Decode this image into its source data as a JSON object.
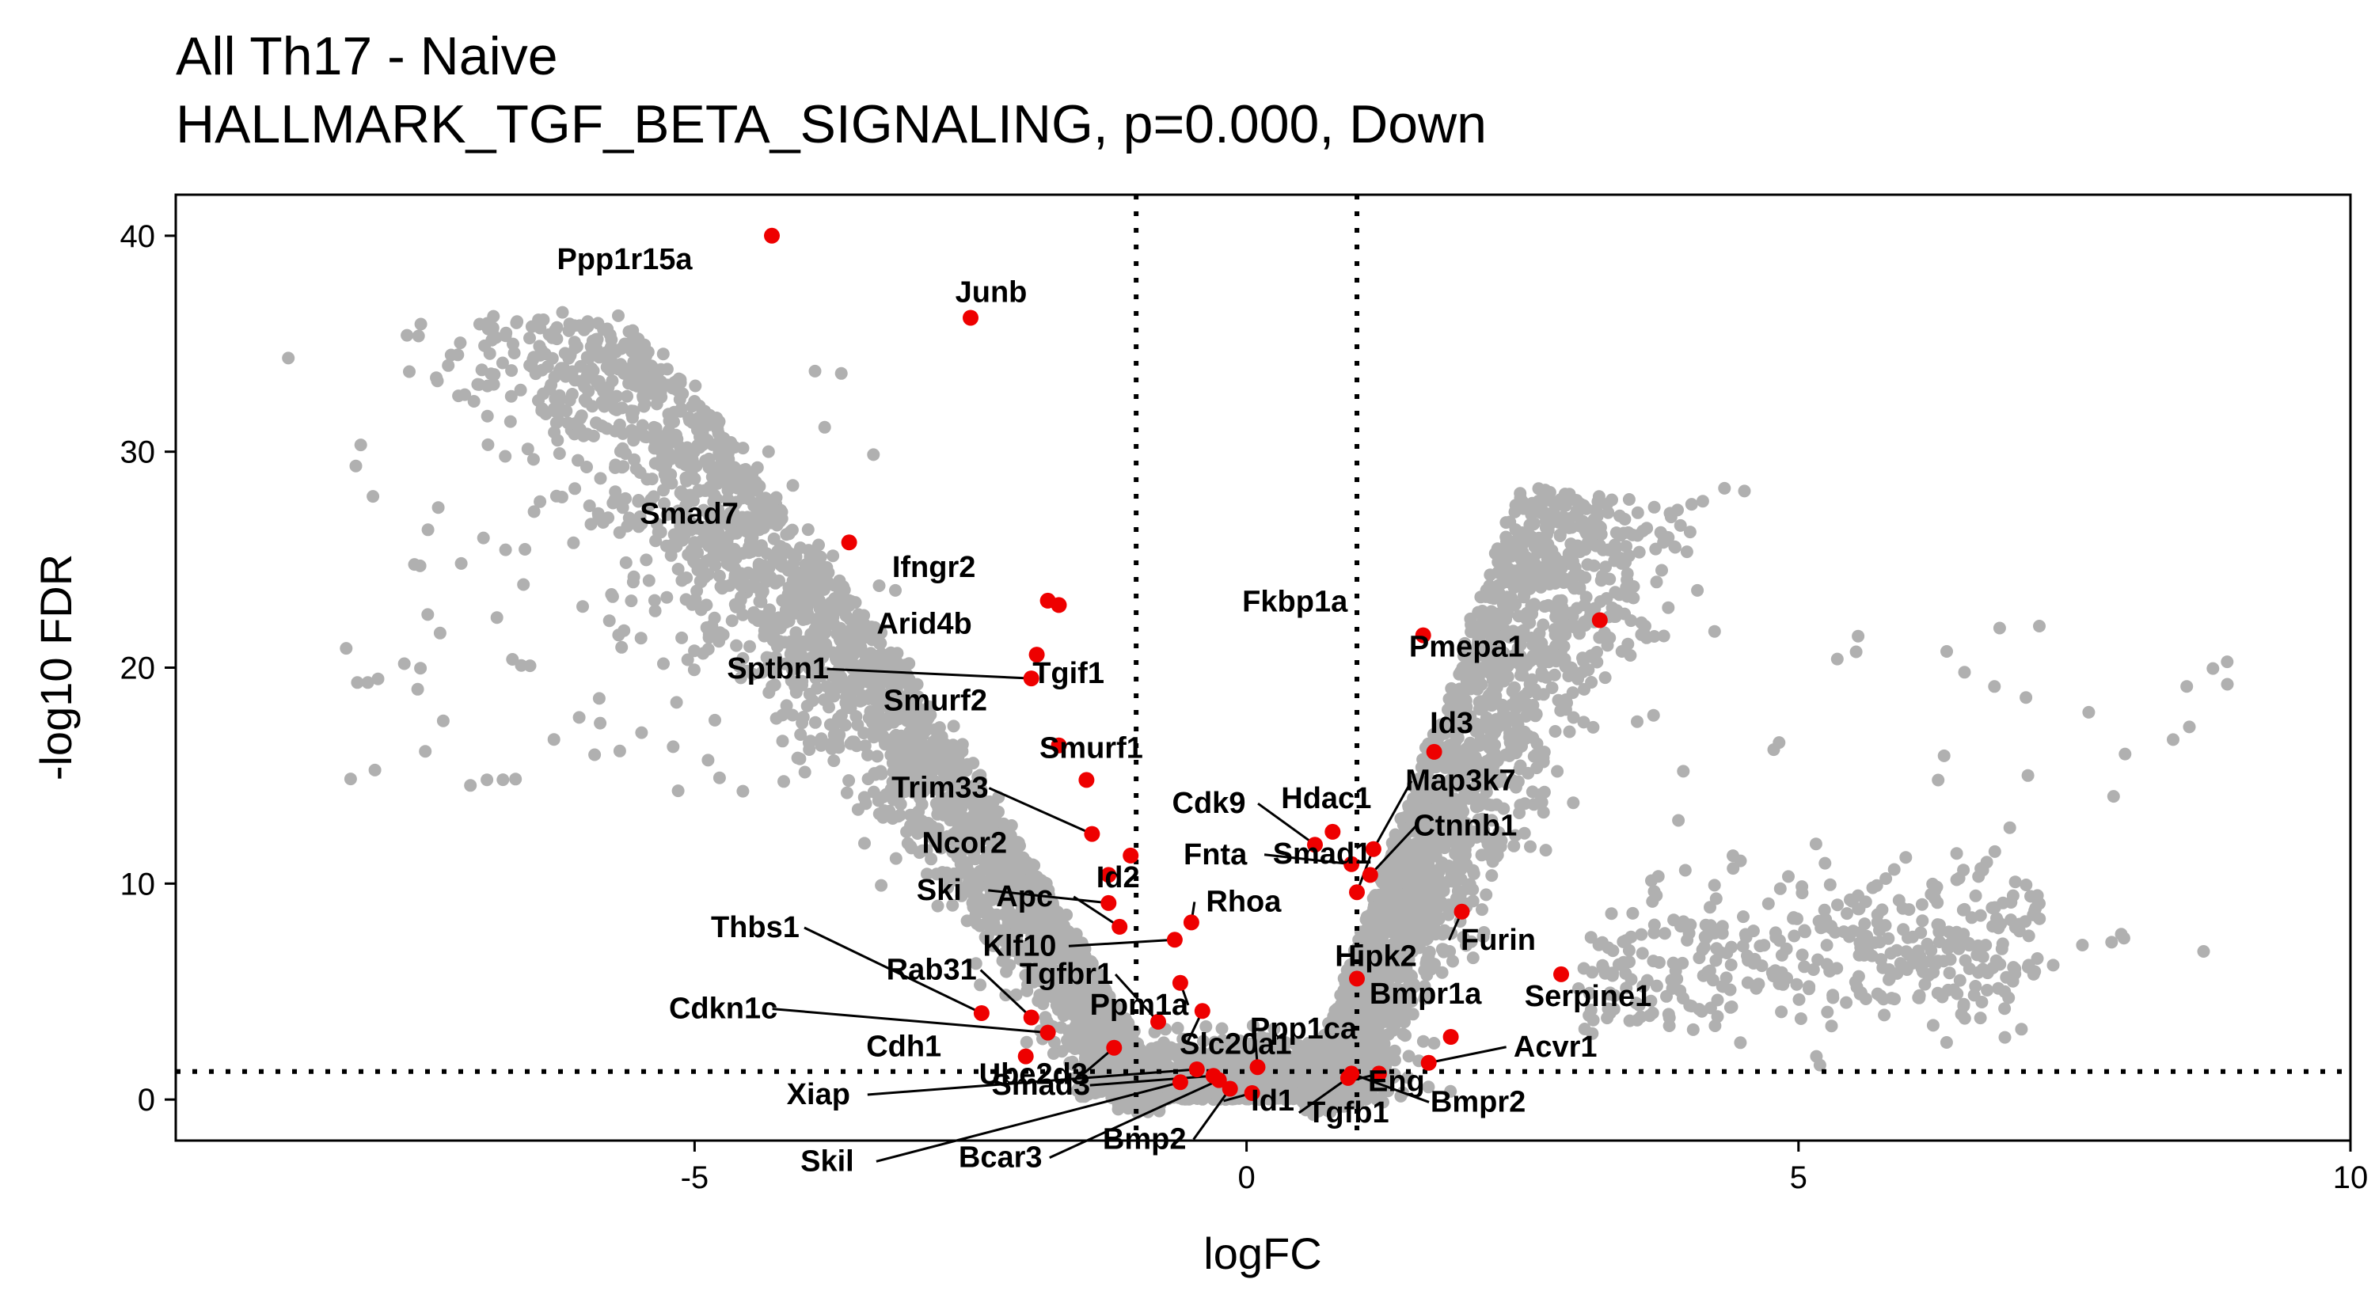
{
  "chart_data": {
    "type": "scatter",
    "title": "All Th17 - Naive",
    "subtitle": "HALLMARK_TGF_BETA_SIGNALING, p=0.000, Down",
    "xlabel": "logFC",
    "ylabel": "-log10 FDR",
    "xlim": [
      -9.7,
      10.0
    ],
    "ylim": [
      -1.9,
      41.9
    ],
    "xticks": [
      -5,
      0,
      5,
      10
    ],
    "yticks": [
      0,
      10,
      20,
      30,
      40
    ],
    "grid": false,
    "legend": "none",
    "thresholds": {
      "x": [
        -1,
        1
      ],
      "y": 1.3
    },
    "colors": {
      "background_genes": "#b0b0b0",
      "highlight_genes": "#ee0000",
      "lines": "#000000"
    },
    "highlighted_genes": [
      {
        "gene": "Ppp1r15a",
        "x": -4.3,
        "y": 40.0
      },
      {
        "gene": "Junb",
        "x": -2.5,
        "y": 36.2
      },
      {
        "gene": "Smad7",
        "x": -3.6,
        "y": 25.8
      },
      {
        "gene": "Ifngr2",
        "x": -1.8,
        "y": 23.1
      },
      {
        "gene": "Arid4b",
        "x": -1.7,
        "y": 22.9
      },
      {
        "gene": "Tgif1",
        "x": -1.9,
        "y": 20.6
      },
      {
        "gene": "Sptbn1",
        "x": -1.95,
        "y": 19.5
      },
      {
        "gene": "Smurf2",
        "x": -1.7,
        "y": 16.4
      },
      {
        "gene": "Smurf1",
        "x": -1.45,
        "y": 14.8
      },
      {
        "gene": "Trim33",
        "x": -1.4,
        "y": 12.3
      },
      {
        "gene": "Ncor2",
        "x": -1.25,
        "y": 10.4
      },
      {
        "gene": "Id2",
        "x": -1.05,
        "y": 11.3
      },
      {
        "gene": "Ski",
        "x": -1.25,
        "y": 9.1
      },
      {
        "gene": "Apc",
        "x": -1.15,
        "y": 8.0
      },
      {
        "gene": "Rhoa",
        "x": -0.5,
        "y": 8.2
      },
      {
        "gene": "Klf10",
        "x": -0.65,
        "y": 7.4
      },
      {
        "gene": "Ppm1a",
        "x": -0.6,
        "y": 5.4
      },
      {
        "gene": "Slc20a1",
        "x": -0.4,
        "y": 4.1
      },
      {
        "gene": "Thbs1",
        "x": -2.4,
        "y": 4.0
      },
      {
        "gene": "Rab31",
        "x": -1.95,
        "y": 3.8
      },
      {
        "gene": "Tgfbr1",
        "x": -0.8,
        "y": 3.6
      },
      {
        "gene": "Cdkn1c",
        "x": -1.8,
        "y": 3.1
      },
      {
        "gene": "Ube2d3",
        "x": -1.2,
        "y": 2.4
      },
      {
        "gene": "Cdh1",
        "x": -2.0,
        "y": 2.0
      },
      {
        "gene": "Xiap",
        "x": -0.45,
        "y": 1.4
      },
      {
        "gene": "Smad3",
        "x": -0.3,
        "y": 1.1
      },
      {
        "gene": "Skil",
        "x": -0.6,
        "y": 0.8
      },
      {
        "gene": "Bcar3",
        "x": -0.25,
        "y": 0.9
      },
      {
        "gene": "Bmp2",
        "x": -0.15,
        "y": 0.5
      },
      {
        "gene": "Id1",
        "x": 0.05,
        "y": 0.3
      },
      {
        "gene": "Ppp1ca",
        "x": 0.1,
        "y": 1.5
      },
      {
        "gene": "Fkbp1a",
        "x": 1.6,
        "y": 21.5
      },
      {
        "gene": "Pmepa1",
        "x": 3.2,
        "y": 22.2
      },
      {
        "gene": "Id3",
        "x": 1.7,
        "y": 16.1
      },
      {
        "gene": "Cdk9",
        "x": 0.62,
        "y": 11.8
      },
      {
        "gene": "Hdac1",
        "x": 0.78,
        "y": 12.4
      },
      {
        "gene": "Map3k7",
        "x": 1.15,
        "y": 11.6
      },
      {
        "gene": "Fnta",
        "x": 0.95,
        "y": 10.9
      },
      {
        "gene": "Ctnnb1",
        "x": 1.12,
        "y": 10.4
      },
      {
        "gene": "Smad1",
        "x": 1.0,
        "y": 9.6
      },
      {
        "gene": "Furin",
        "x": 1.95,
        "y": 8.7
      },
      {
        "gene": "Hipk2",
        "x": 1.0,
        "y": 5.6
      },
      {
        "gene": "Serpine1",
        "x": 2.85,
        "y": 5.8
      },
      {
        "gene": "Bmpr1a",
        "x": 1.85,
        "y": 2.9
      },
      {
        "gene": "Acvr1",
        "x": 1.65,
        "y": 1.7
      },
      {
        "gene": "Eng",
        "x": 1.2,
        "y": 1.2
      },
      {
        "gene": "Tgfb1",
        "x": 0.92,
        "y": 1.0
      },
      {
        "gene": "Bmpr2",
        "x": 0.95,
        "y": 1.2
      }
    ]
  }
}
